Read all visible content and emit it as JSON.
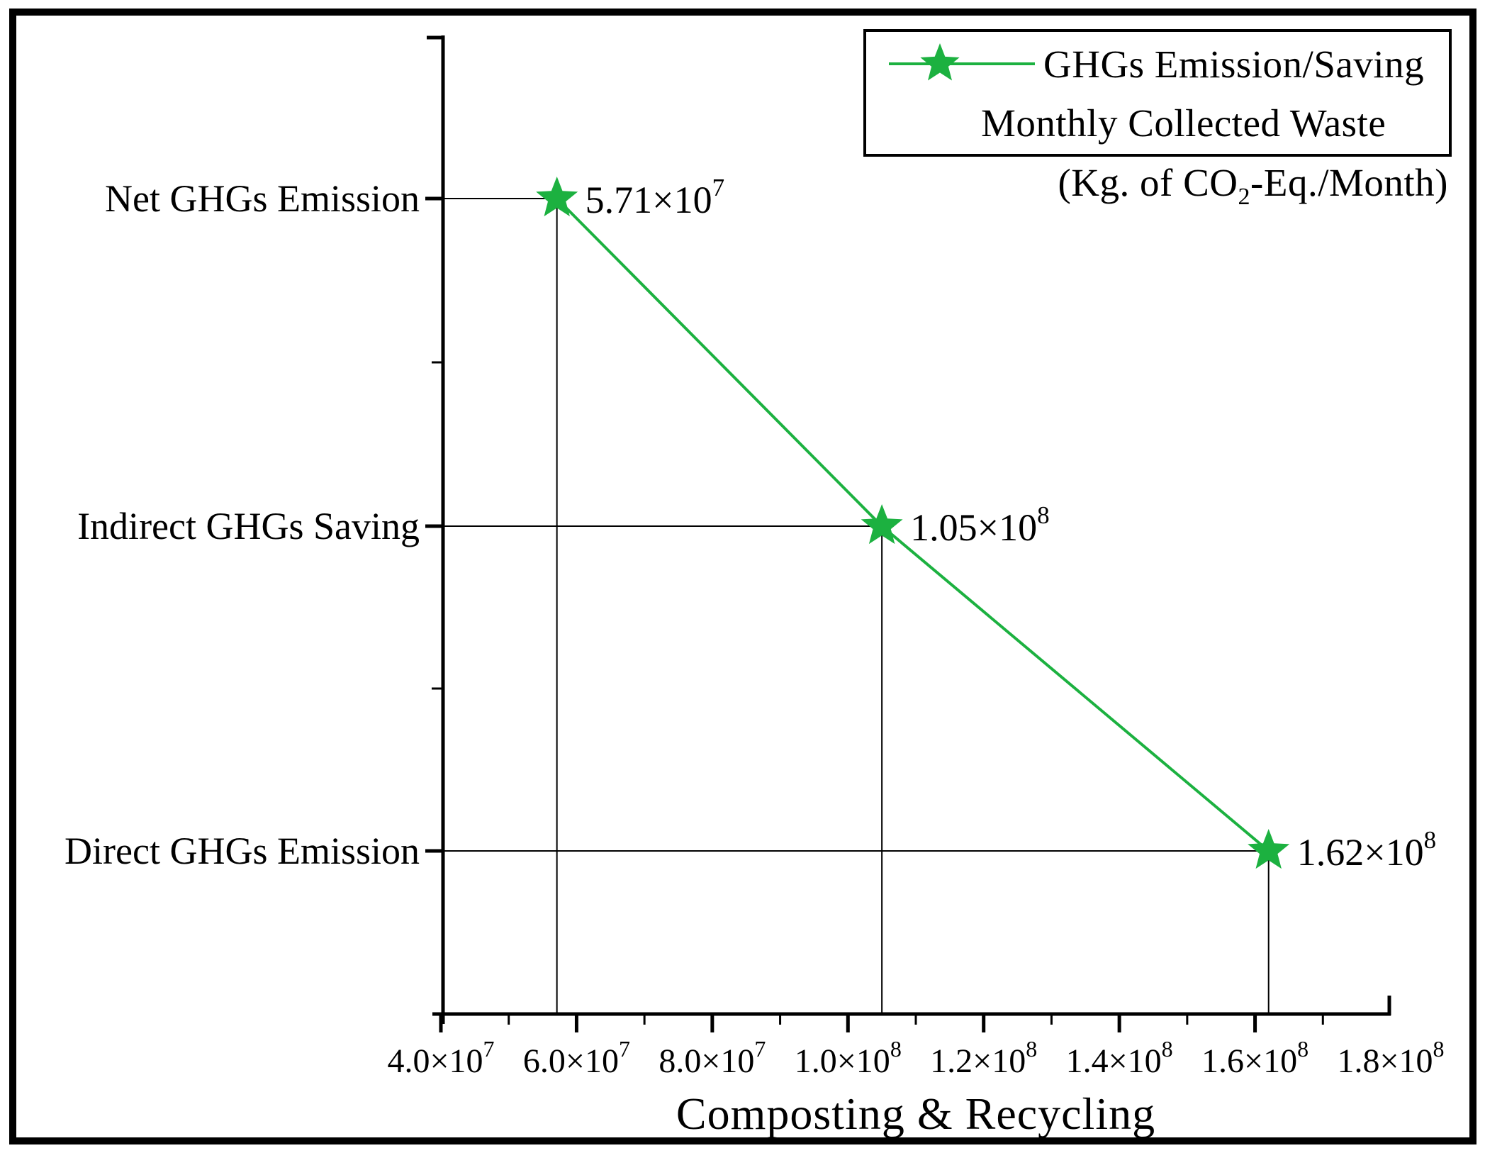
{
  "figure": {
    "background": "#ffffff",
    "frame_color": "#000000"
  },
  "legend": {
    "series_label": "GHGs Emission/Saving",
    "series_label_line2": "Monthly Collected Waste",
    "units_prefix": "(Kg. of CO",
    "units_sub": "2",
    "units_suffix": "-Eq./Month)",
    "marker": "green-star-on-line",
    "marker_color": "#1cb140"
  },
  "chart_data": {
    "type": "line",
    "title": "",
    "xlabel": "Composting & Recycling",
    "ylabel": "",
    "categories": [
      "Net GHGs Emission",
      "Indirect GHGs Saving",
      "Direct GHGs Emission"
    ],
    "series": [
      {
        "name": "GHGs Emission/Saving Monthly Collected Waste (Kg. of CO2-Eq./Month)",
        "color": "#1cb140",
        "marker": "star",
        "values": [
          57100000,
          105000000,
          162000000
        ],
        "point_labels": [
          "5.71×10^7",
          "1.05×10^8",
          "1.62×10^8"
        ]
      }
    ],
    "x_axis": {
      "min": 40000000,
      "max": 180000000,
      "major_step": 20000000,
      "minor_per_major": 1,
      "tick_labels": [
        "4.0×10^7",
        "6.0×10^7",
        "8.0×10^7",
        "1.0×10^8",
        "1.2×10^8",
        "1.4×10^8",
        "1.6×10^8",
        "1.8×10^8"
      ]
    },
    "y_axis": {
      "type": "category",
      "labels_on": "left"
    },
    "grid": false,
    "legend_position": "top-right",
    "annotations": "value label at each star marker; thin black reference lines from each point to both axes"
  }
}
